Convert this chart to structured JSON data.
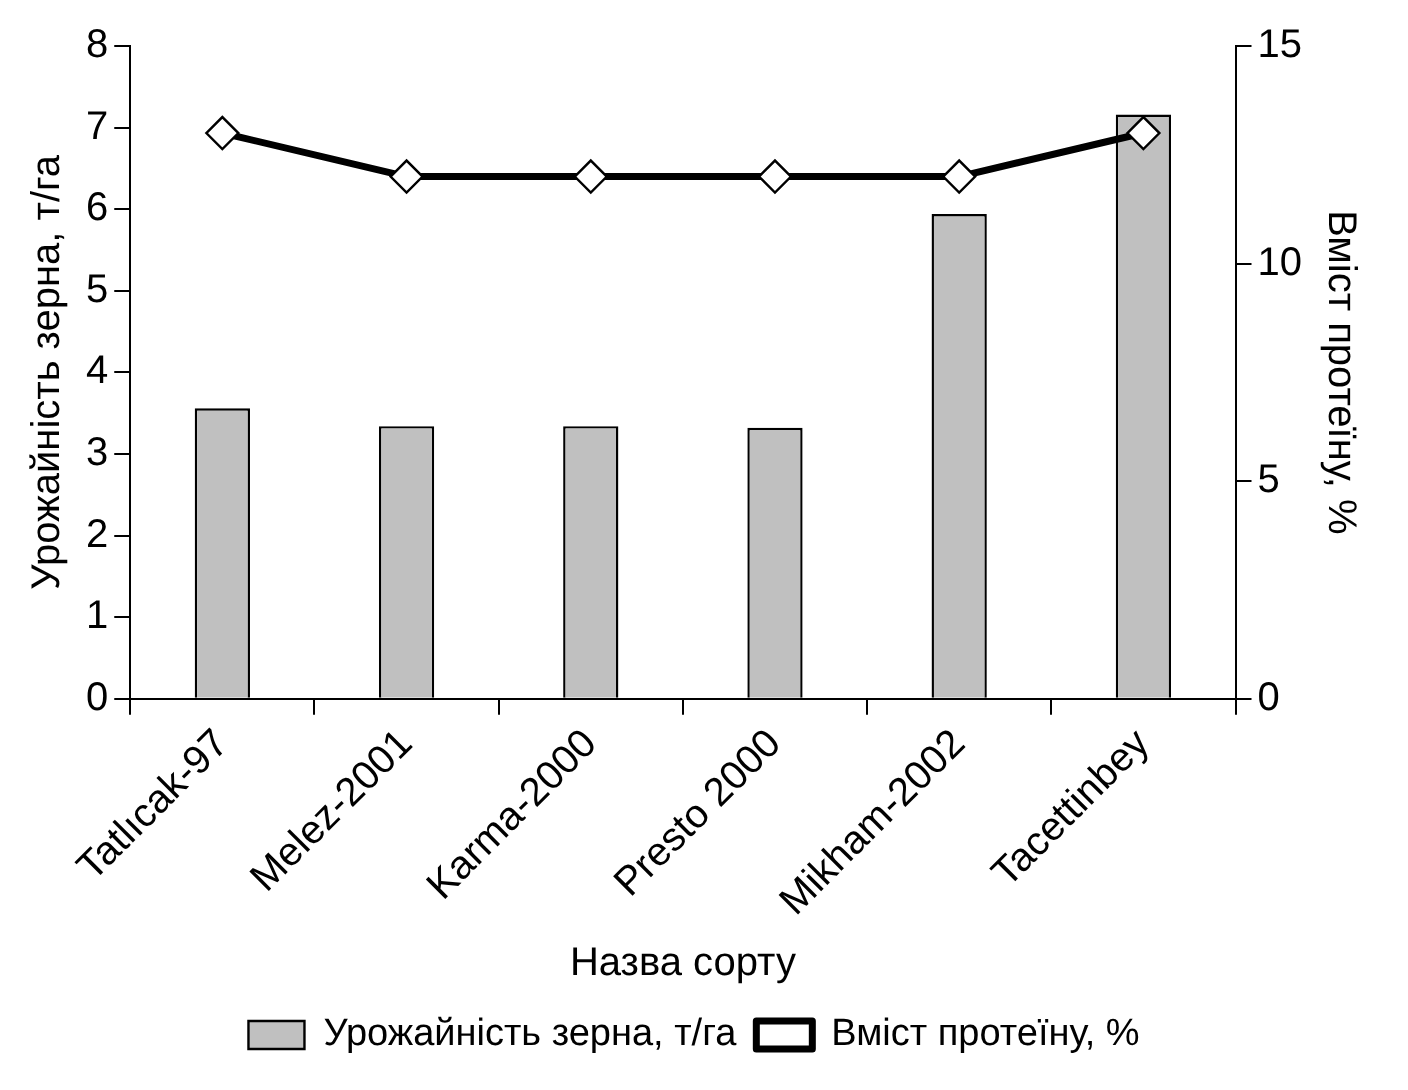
{
  "chart_data": {
    "type": "bar",
    "xlabel": "Назва сорту",
    "ylabel": "Урожайність зерна, т/га",
    "y2label": "Вміст протеїну, %",
    "categories": [
      "Tatlıcak-97",
      "Melez-2001",
      "Karma-2000",
      "Presto 2000",
      "Mikham-2002",
      "Tacettinbey"
    ],
    "series": [
      {
        "name": "Урожайність зерна, т/га",
        "color": "#c0c0c0",
        "values": [
          3.56,
          3.34,
          3.34,
          3.32,
          5.94,
          7.16
        ]
      },
      {
        "name": "Вміст протеїну, %",
        "type": "line",
        "axis": "y2",
        "color": "#000000",
        "marker": "diamond",
        "values": [
          13,
          12,
          12,
          12,
          12,
          13
        ]
      }
    ],
    "ylim": [
      0,
      8
    ],
    "yticks": [
      0,
      1,
      2,
      3,
      4,
      5,
      6,
      7,
      8
    ],
    "y2lim": [
      0,
      15
    ],
    "y2ticks": [
      0,
      5,
      10,
      15
    ],
    "grid": false,
    "legend": "bottom"
  }
}
